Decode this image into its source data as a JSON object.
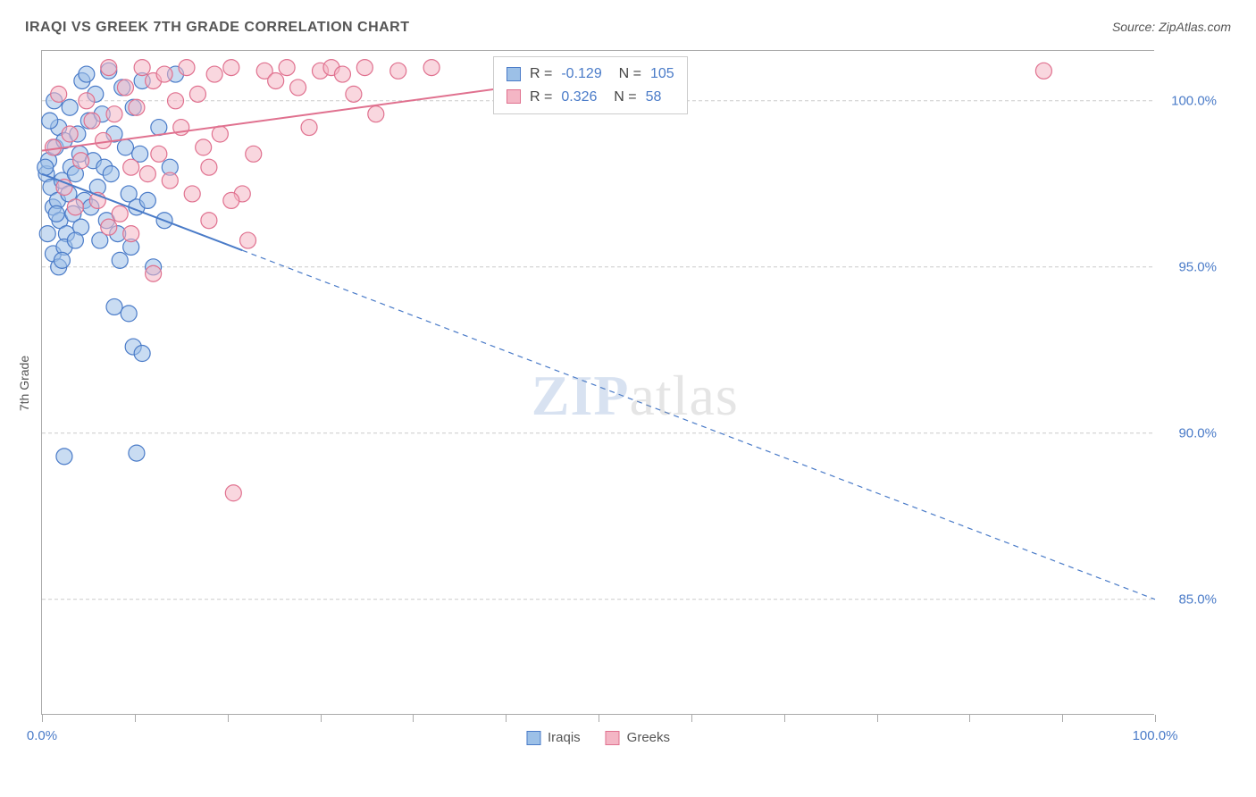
{
  "title": "IRAQI VS GREEK 7TH GRADE CORRELATION CHART",
  "source": "Source: ZipAtlas.com",
  "watermark_a": "ZIP",
  "watermark_b": "atlas",
  "y_axis_label": "7th Grade",
  "chart": {
    "type": "scatter",
    "background_color": "#ffffff",
    "grid_color": "#cccccc",
    "grid_dash": "4 3",
    "axis_color": "#aaaaaa",
    "x_range": [
      0,
      100
    ],
    "y_range": [
      81.5,
      101.5
    ],
    "x_ticks_visible": [
      0.0,
      100.0
    ],
    "x_tick_positions": [
      0,
      8.33,
      16.67,
      25,
      33.33,
      41.67,
      50,
      58.33,
      66.67,
      75,
      83.33,
      91.67,
      100
    ],
    "x_tick_labels": [
      "0.0%",
      "100.0%"
    ],
    "y_ticks": [
      85.0,
      90.0,
      95.0,
      100.0
    ],
    "y_tick_labels": [
      "85.0%",
      "90.0%",
      "95.0%",
      "100.0%"
    ],
    "label_fontsize": 15,
    "label_color": "#4a7bc8",
    "marker_radius": 9,
    "marker_opacity": 0.55,
    "line_width": 2,
    "series": [
      {
        "name": "Iraqis",
        "fill_color": "#9cc0e7",
        "stroke_color": "#4a7bc8",
        "R": "-0.129",
        "N": "105",
        "regression_solid": {
          "x1": 0,
          "y1": 97.8,
          "x2": 18,
          "y2": 95.5
        },
        "regression_dashed": {
          "x1": 18,
          "y1": 95.5,
          "x2": 100,
          "y2": 85.0
        },
        "points": [
          [
            0.4,
            97.8
          ],
          [
            0.6,
            98.2
          ],
          [
            0.8,
            97.4
          ],
          [
            1.0,
            96.8
          ],
          [
            1.2,
            98.6
          ],
          [
            1.4,
            97.0
          ],
          [
            1.5,
            99.2
          ],
          [
            1.6,
            96.4
          ],
          [
            1.8,
            97.6
          ],
          [
            2.0,
            98.8
          ],
          [
            2.2,
            96.0
          ],
          [
            2.4,
            97.2
          ],
          [
            2.5,
            99.8
          ],
          [
            2.6,
            98.0
          ],
          [
            2.8,
            96.6
          ],
          [
            3.0,
            97.8
          ],
          [
            3.2,
            99.0
          ],
          [
            3.4,
            98.4
          ],
          [
            3.5,
            96.2
          ],
          [
            3.6,
            100.6
          ],
          [
            3.8,
            97.0
          ],
          [
            4.0,
            100.8
          ],
          [
            4.2,
            99.4
          ],
          [
            4.4,
            96.8
          ],
          [
            4.6,
            98.2
          ],
          [
            4.8,
            100.2
          ],
          [
            5.0,
            97.4
          ],
          [
            5.2,
            95.8
          ],
          [
            5.4,
            99.6
          ],
          [
            5.6,
            98.0
          ],
          [
            5.8,
            96.4
          ],
          [
            6.0,
            100.9
          ],
          [
            6.2,
            97.8
          ],
          [
            6.5,
            99.0
          ],
          [
            6.8,
            96.0
          ],
          [
            7.0,
            95.2
          ],
          [
            7.2,
            100.4
          ],
          [
            7.5,
            98.6
          ],
          [
            7.8,
            97.2
          ],
          [
            8.0,
            95.6
          ],
          [
            8.2,
            99.8
          ],
          [
            8.5,
            96.8
          ],
          [
            8.8,
            98.4
          ],
          [
            9.0,
            100.6
          ],
          [
            9.5,
            97.0
          ],
          [
            10.0,
            95.0
          ],
          [
            10.5,
            99.2
          ],
          [
            11.0,
            96.4
          ],
          [
            11.5,
            98.0
          ],
          [
            12.0,
            100.8
          ],
          [
            1.0,
            95.4
          ],
          [
            1.5,
            95.0
          ],
          [
            2.0,
            95.6
          ],
          [
            0.5,
            96.0
          ],
          [
            1.8,
            95.2
          ],
          [
            3.0,
            95.8
          ],
          [
            0.3,
            98.0
          ],
          [
            0.7,
            99.4
          ],
          [
            1.1,
            100.0
          ],
          [
            1.3,
            96.6
          ],
          [
            6.5,
            93.8
          ],
          [
            7.8,
            93.6
          ],
          [
            8.2,
            92.6
          ],
          [
            9.0,
            92.4
          ],
          [
            2.0,
            89.3
          ],
          [
            8.5,
            89.4
          ]
        ]
      },
      {
        "name": "Greeks",
        "fill_color": "#f4b6c5",
        "stroke_color": "#e0718f",
        "R": "0.326",
        "N": "58",
        "regression_solid": {
          "x1": 0,
          "y1": 98.5,
          "x2": 55,
          "y2": 101.0
        },
        "regression_dashed": null,
        "points": [
          [
            1.0,
            98.6
          ],
          [
            1.5,
            100.2
          ],
          [
            2.0,
            97.4
          ],
          [
            2.5,
            99.0
          ],
          [
            3.0,
            96.8
          ],
          [
            3.5,
            98.2
          ],
          [
            4.0,
            100.0
          ],
          [
            4.5,
            99.4
          ],
          [
            5.0,
            97.0
          ],
          [
            5.5,
            98.8
          ],
          [
            6.0,
            101.0
          ],
          [
            6.5,
            99.6
          ],
          [
            7.0,
            96.6
          ],
          [
            7.5,
            100.4
          ],
          [
            8.0,
            98.0
          ],
          [
            8.5,
            99.8
          ],
          [
            9.0,
            101.0
          ],
          [
            9.5,
            97.8
          ],
          [
            10.0,
            100.6
          ],
          [
            10.5,
            98.4
          ],
          [
            11.0,
            100.8
          ],
          [
            11.5,
            97.6
          ],
          [
            12.0,
            100.0
          ],
          [
            12.5,
            99.2
          ],
          [
            13.0,
            101.0
          ],
          [
            13.5,
            97.2
          ],
          [
            14.0,
            100.2
          ],
          [
            14.5,
            98.6
          ],
          [
            15.0,
            98.0
          ],
          [
            15.5,
            100.8
          ],
          [
            16.0,
            99.0
          ],
          [
            17.0,
            101.0
          ],
          [
            18.0,
            97.2
          ],
          [
            19.0,
            98.4
          ],
          [
            20.0,
            100.9
          ],
          [
            21.0,
            100.6
          ],
          [
            22.0,
            101.0
          ],
          [
            23.0,
            100.4
          ],
          [
            24.0,
            99.2
          ],
          [
            25.0,
            100.9
          ],
          [
            26.0,
            101.0
          ],
          [
            27.0,
            100.8
          ],
          [
            28.0,
            100.2
          ],
          [
            29.0,
            101.0
          ],
          [
            30.0,
            99.6
          ],
          [
            32.0,
            100.9
          ],
          [
            35.0,
            101.0
          ],
          [
            6.0,
            96.2
          ],
          [
            8.0,
            96.0
          ],
          [
            10.0,
            94.8
          ],
          [
            15.0,
            96.4
          ],
          [
            17.0,
            97.0
          ],
          [
            18.5,
            95.8
          ],
          [
            17.2,
            88.2
          ],
          [
            90.0,
            100.9
          ]
        ]
      }
    ]
  },
  "legend": {
    "items": [
      {
        "label": "Iraqis",
        "fill": "#9cc0e7",
        "stroke": "#4a7bc8"
      },
      {
        "label": "Greeks",
        "fill": "#f4b6c5",
        "stroke": "#e0718f"
      }
    ]
  }
}
